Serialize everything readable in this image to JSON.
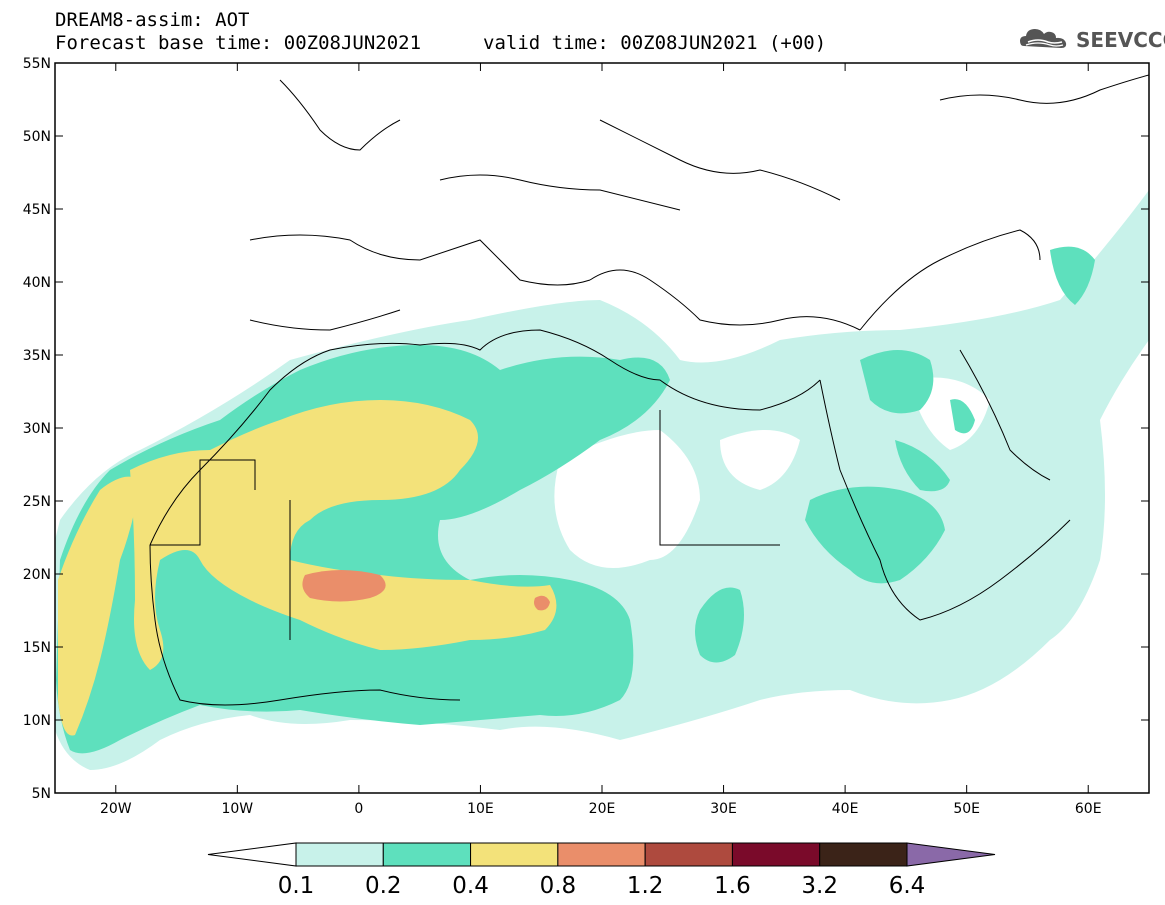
{
  "header": {
    "line1": "DREAM8-assim: AOT",
    "line2": "Forecast base time: 00Z08JUN2021",
    "line3": "valid time: 00Z08JUN2021 (+00)"
  },
  "logo": {
    "text": "SEEVCCC",
    "icon": "cloud-logo-icon"
  },
  "map": {
    "lat_labels": [
      "55N",
      "50N",
      "45N",
      "40N",
      "35N",
      "30N",
      "25N",
      "20N",
      "15N",
      "10N",
      "5N"
    ],
    "lon_labels": [
      "20W",
      "10W",
      "0",
      "10E",
      "20E",
      "30E",
      "40E",
      "50E",
      "60E"
    ],
    "lat_range": [
      5,
      55
    ],
    "lon_range": [
      -25,
      65
    ]
  },
  "colorbar": {
    "labels": [
      "0.1",
      "0.2",
      "0.4",
      "0.8",
      "1.2",
      "1.6",
      "3.2",
      "6.4"
    ],
    "colors": [
      "#ffffff",
      "#c8f2ea",
      "#5ee0bd",
      "#f3e27a",
      "#ea8e6a",
      "#ae4a3e",
      "#7a0a2a",
      "#3b2318",
      "#8a69a8"
    ]
  },
  "fields": {
    "c_01": "#c8f2ea",
    "c_02": "#5ee0bd",
    "c_04": "#f3e27a",
    "c_08": "#ea8e6a"
  }
}
